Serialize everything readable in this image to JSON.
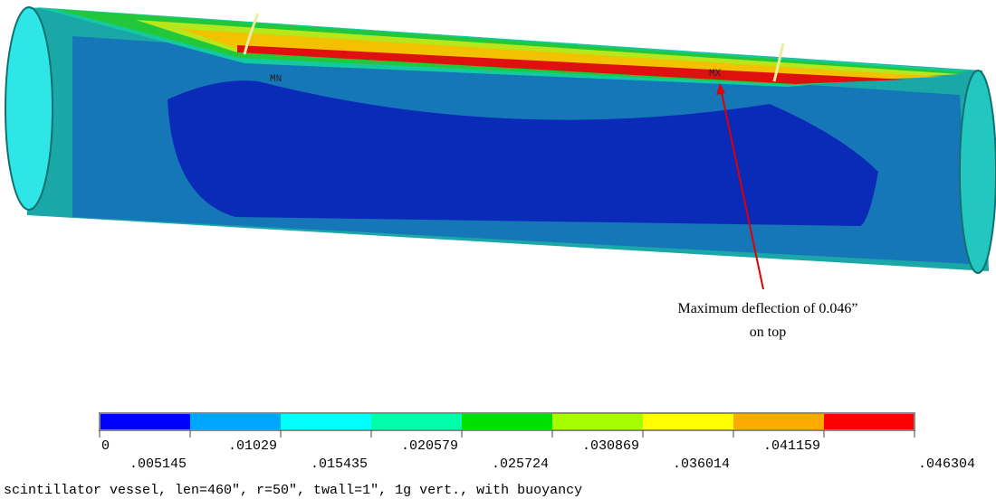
{
  "markers": {
    "min": "MN",
    "max": "MX"
  },
  "annotation": {
    "line1": "Maximum deflection of 0.046”",
    "line2": "on top"
  },
  "legend": {
    "colors": [
      "#0000ff",
      "#00a5ff",
      "#00ffff",
      "#00ffaa",
      "#00e000",
      "#a5ff00",
      "#ffff00",
      "#ffaa00",
      "#ff0000"
    ],
    "labels": [
      "0",
      ".005145",
      ".01029",
      ".015435",
      ".020579",
      ".025724",
      ".030869",
      ".036014",
      ".041159",
      ".046304"
    ]
  },
  "caption": "scintillator vessel, len=460\", r=50\", twall=1\", 1g vert., with buoyancy"
}
